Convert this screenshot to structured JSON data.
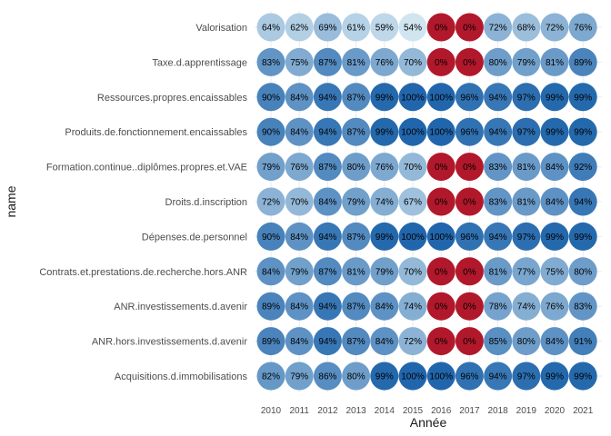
{
  "chart_data": {
    "type": "heatmap",
    "title": "",
    "xlabel": "Année",
    "ylabel": "name",
    "x": [
      "2010",
      "2011",
      "2012",
      "2013",
      "2014",
      "2015",
      "2016",
      "2017",
      "2018",
      "2019",
      "2020",
      "2021"
    ],
    "y": [
      "Valorisation",
      "Taxe.d.apprentissage",
      "Ressources.propres.encaissables",
      "Produits.de.fonctionnement.encaissables",
      "Formation.continue..diplômes.propres.et.VAE",
      "Droits.d.inscription",
      "Dépenses.de.personnel",
      "Contrats.et.prestations.de.recherche.hors.ANR",
      "ANR.investissements.d.avenir",
      "ANR.hors.investissements.d.avenir",
      "Acquisitions.d.immobilisations"
    ],
    "values": [
      [
        64,
        62,
        69,
        61,
        59,
        54,
        0,
        0,
        72,
        68,
        72,
        76
      ],
      [
        83,
        75,
        87,
        81,
        76,
        70,
        0,
        0,
        80,
        79,
        81,
        89
      ],
      [
        90,
        84,
        94,
        87,
        99,
        100,
        100,
        96,
        94,
        97,
        99,
        99
      ],
      [
        90,
        84,
        94,
        87,
        99,
        100,
        100,
        96,
        94,
        97,
        99,
        99
      ],
      [
        79,
        76,
        87,
        80,
        76,
        70,
        0,
        0,
        83,
        81,
        84,
        92
      ],
      [
        72,
        70,
        84,
        79,
        74,
        67,
        0,
        0,
        83,
        81,
        84,
        94
      ],
      [
        90,
        84,
        94,
        87,
        99,
        100,
        100,
        96,
        94,
        97,
        99,
        99
      ],
      [
        84,
        79,
        87,
        81,
        79,
        70,
        0,
        0,
        81,
        77,
        75,
        80
      ],
      [
        89,
        84,
        94,
        87,
        84,
        74,
        0,
        0,
        78,
        74,
        76,
        83
      ],
      [
        89,
        84,
        94,
        87,
        84,
        72,
        0,
        0,
        85,
        80,
        84,
        91
      ],
      [
        82,
        79,
        86,
        80,
        99,
        100,
        100,
        96,
        94,
        97,
        99,
        99
      ]
    ],
    "value_suffix": "%",
    "colors": {
      "zero": "#b2182b",
      "low": "#d1e5f0",
      "high": "#2166ac",
      "grid": "#ebebeb"
    },
    "legend": "none",
    "grid": true
  }
}
